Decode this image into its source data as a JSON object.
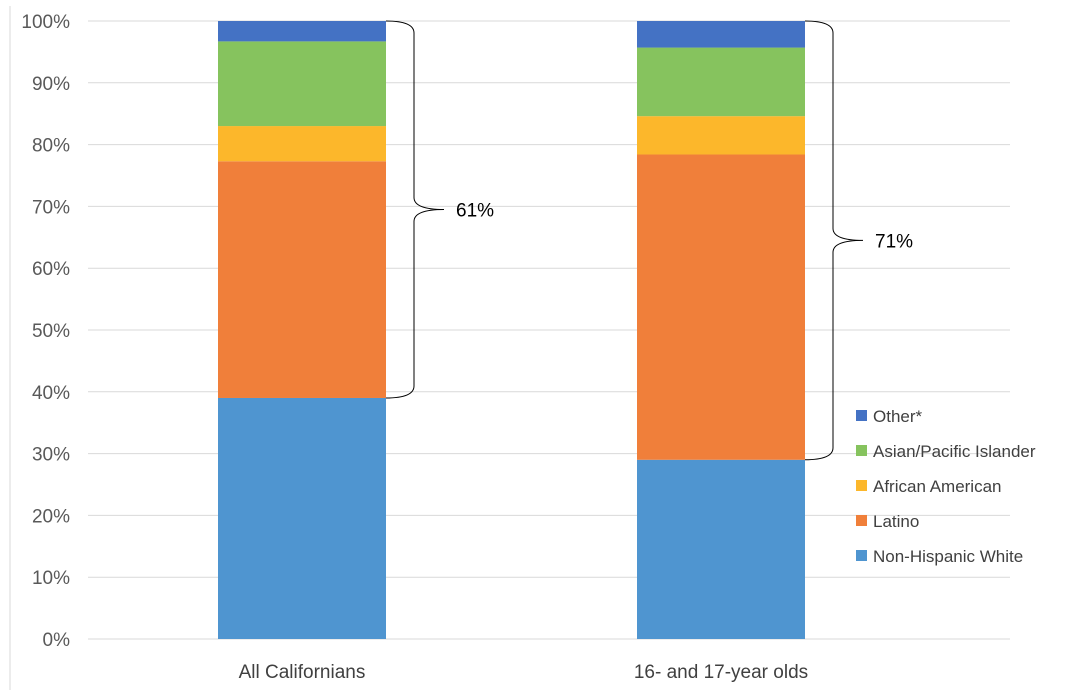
{
  "chart_data": {
    "type": "bar",
    "stacked": true,
    "categories": [
      "All Californians",
      "16- and 17-year olds"
    ],
    "series": [
      {
        "name": "Non-Hispanic White",
        "values": [
          39,
          29
        ],
        "color": "#4f95d0"
      },
      {
        "name": "Latino",
        "values": [
          38.3,
          49.4
        ],
        "color": "#f07f3a"
      },
      {
        "name": "African American",
        "values": [
          5.7,
          6.2
        ],
        "color": "#fcb72b"
      },
      {
        "name": "Asian/Pacific Islander",
        "values": [
          13.7,
          11.1
        ],
        "color": "#86c35e"
      },
      {
        "name": "Other*",
        "values": [
          3.3,
          4.3
        ],
        "color": "#4472c4"
      }
    ],
    "ylim": [
      0,
      100
    ],
    "yticks": [
      "0%",
      "10%",
      "20%",
      "30%",
      "40%",
      "50%",
      "60%",
      "70%",
      "80%",
      "90%",
      "100%"
    ],
    "grid": true,
    "legend_position": "right",
    "legend_order": [
      "Other*",
      "Asian/Pacific Islander",
      "African American",
      "Latino",
      "Non-Hispanic White"
    ],
    "annotations": [
      {
        "category": "All Californians",
        "from": 39,
        "to": 100,
        "label": "61%"
      },
      {
        "category": "16- and 17-year olds",
        "from": 29,
        "to": 100,
        "label": "71%"
      }
    ]
  }
}
